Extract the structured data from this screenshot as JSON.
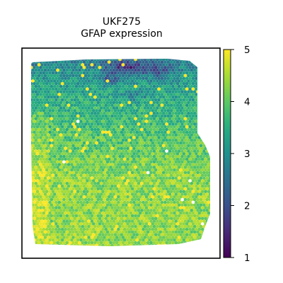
{
  "chart_data": {
    "type": "heatmap",
    "subtype": "spatial-hex-spot-plot",
    "title_lines": [
      "UKF275",
      "GFAP expression"
    ],
    "colormap": "viridis",
    "colorbar": {
      "range": [
        1,
        5
      ],
      "ticks": [
        1,
        2,
        3,
        4,
        5
      ],
      "tick_labels": [
        "1",
        "2",
        "3",
        "4",
        "5"
      ]
    },
    "value_summary": {
      "top_region": 2.7,
      "darkest_spots": 1.3,
      "upper_middle": 3.6,
      "lower_region": 4.3,
      "brightest_spots": 5.0
    },
    "grid": false,
    "legend": "colorbar-right",
    "axes_ticks_visible": false
  }
}
